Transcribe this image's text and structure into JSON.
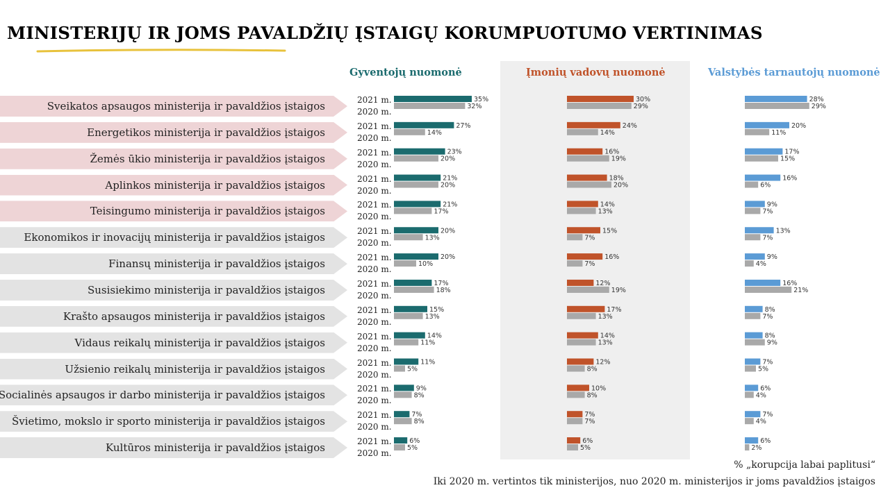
{
  "title": "MINISTERIJŲ IR JOMS PAVALDŽIŲ ĮSTAIGŲ KORUMPUOTUMO VERTINIMAS",
  "colors": {
    "gyventoju": "#1b6b6e",
    "imoniu": "#c0532a",
    "valstybes": "#5b9bd5",
    "y2020": "#a9a9a9",
    "highlight_row": "#eed4d6",
    "normal_row": "#e3e3e3",
    "underline": "#e8c23c"
  },
  "footnote": {
    "line1": "% „korupcija labai paplitusi“",
    "line2": "Iki 2020 m. vertintos tik ministerijos, nuo 2020 m. ministerijos ir joms pavaldžios įstaigos"
  },
  "chart_data": {
    "type": "bar",
    "orientation": "horizontal",
    "year_labels": [
      "2021 m.",
      "2020 m."
    ],
    "groups": [
      {
        "name": "Gyventojų nuomonė"
      },
      {
        "name": "Įmonių vadovų nuomonė"
      },
      {
        "name": "Valstybės tarnautojų nuomonė"
      }
    ],
    "categories": [
      "Sveikatos apsaugos ministerija ir pavaldžios įstaigos",
      "Energetikos ministerija ir pavaldžios įstaigos",
      "Žemės ūkio ministerija ir pavaldžios įstaigos",
      "Aplinkos ministerija ir pavaldžios įstaigos",
      "Teisingumo ministerija ir pavaldžios įstaigos",
      "Ekonomikos ir inovacijų ministerija ir pavaldžios įstaigos",
      "Finansų ministerija ir pavaldžios įstaigos",
      "Susisiekimo ministerija ir pavaldžios įstaigos",
      "Krašto apsaugos ministerija ir pavaldžios įstaigos",
      "Vidaus reikalų ministerija ir pavaldžios įstaigos",
      "Užsienio reikalų ministerija ir pavaldžios įstaigos",
      "Socialinės apsaugos ir darbo ministerija ir pavaldžios įstaigos",
      "Švietimo, mokslo ir sporto ministerija ir pavaldžios įstaigos",
      "Kultūros ministerija ir pavaldžios įstaigos"
    ],
    "highlighted_categories": 5,
    "series": [
      {
        "group": 0,
        "year": "2021 m.",
        "values": [
          35,
          27,
          23,
          21,
          21,
          20,
          20,
          17,
          15,
          14,
          11,
          9,
          7,
          6
        ]
      },
      {
        "group": 0,
        "year": "2020 m.",
        "values": [
          32,
          14,
          20,
          20,
          17,
          13,
          10,
          18,
          13,
          11,
          5,
          8,
          8,
          5
        ]
      },
      {
        "group": 1,
        "year": "2021 m.",
        "values": [
          30,
          24,
          16,
          18,
          14,
          15,
          16,
          12,
          17,
          14,
          12,
          10,
          7,
          6
        ]
      },
      {
        "group": 1,
        "year": "2020 m.",
        "values": [
          29,
          14,
          19,
          20,
          13,
          7,
          7,
          19,
          13,
          13,
          8,
          8,
          7,
          5
        ]
      },
      {
        "group": 2,
        "year": "2021 m.",
        "values": [
          28,
          20,
          17,
          16,
          9,
          13,
          9,
          16,
          8,
          8,
          7,
          6,
          7,
          6
        ]
      },
      {
        "group": 2,
        "year": "2020 m.",
        "values": [
          29,
          11,
          15,
          6,
          7,
          7,
          4,
          21,
          7,
          9,
          5,
          4,
          4,
          2
        ]
      }
    ],
    "value_suffix": "%"
  }
}
